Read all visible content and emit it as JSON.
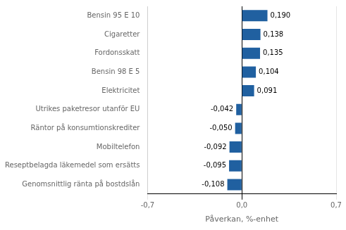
{
  "chart_data": {
    "type": "bar",
    "orientation": "horizontal",
    "categories": [
      "Genomsnittlig ränta på bostdslån",
      "Reseptbelagda läkemedel som ersätts",
      "Mobiltelefon",
      "Räntor på konsumtionskrediter",
      "Utrikes paketresor utanför EU",
      "Elektricitet",
      "Bensin 98 E 5",
      "Fordonsskatt",
      "Cigaretter",
      "Bensin 95 E 10"
    ],
    "values": [
      -0.108,
      -0.095,
      -0.092,
      -0.05,
      -0.042,
      0.091,
      0.104,
      0.135,
      0.138,
      0.19
    ],
    "value_labels": [
      "-0,108",
      "-0,095",
      "-0,092",
      "-0,050",
      "-0,042",
      "0,091",
      "0,104",
      "0,135",
      "0,138",
      "0,190"
    ],
    "data_labels": true,
    "color": "#2060A0",
    "xlabel": "Påverkan, %-enhet",
    "xlim": [
      -0.7,
      0.7
    ],
    "xticks": [
      {
        "value": -0.7,
        "label": "-0,7"
      },
      {
        "value": 0.0,
        "label": "0,0"
      },
      {
        "value": 0.7,
        "label": "0,7"
      }
    ],
    "grid": true
  }
}
